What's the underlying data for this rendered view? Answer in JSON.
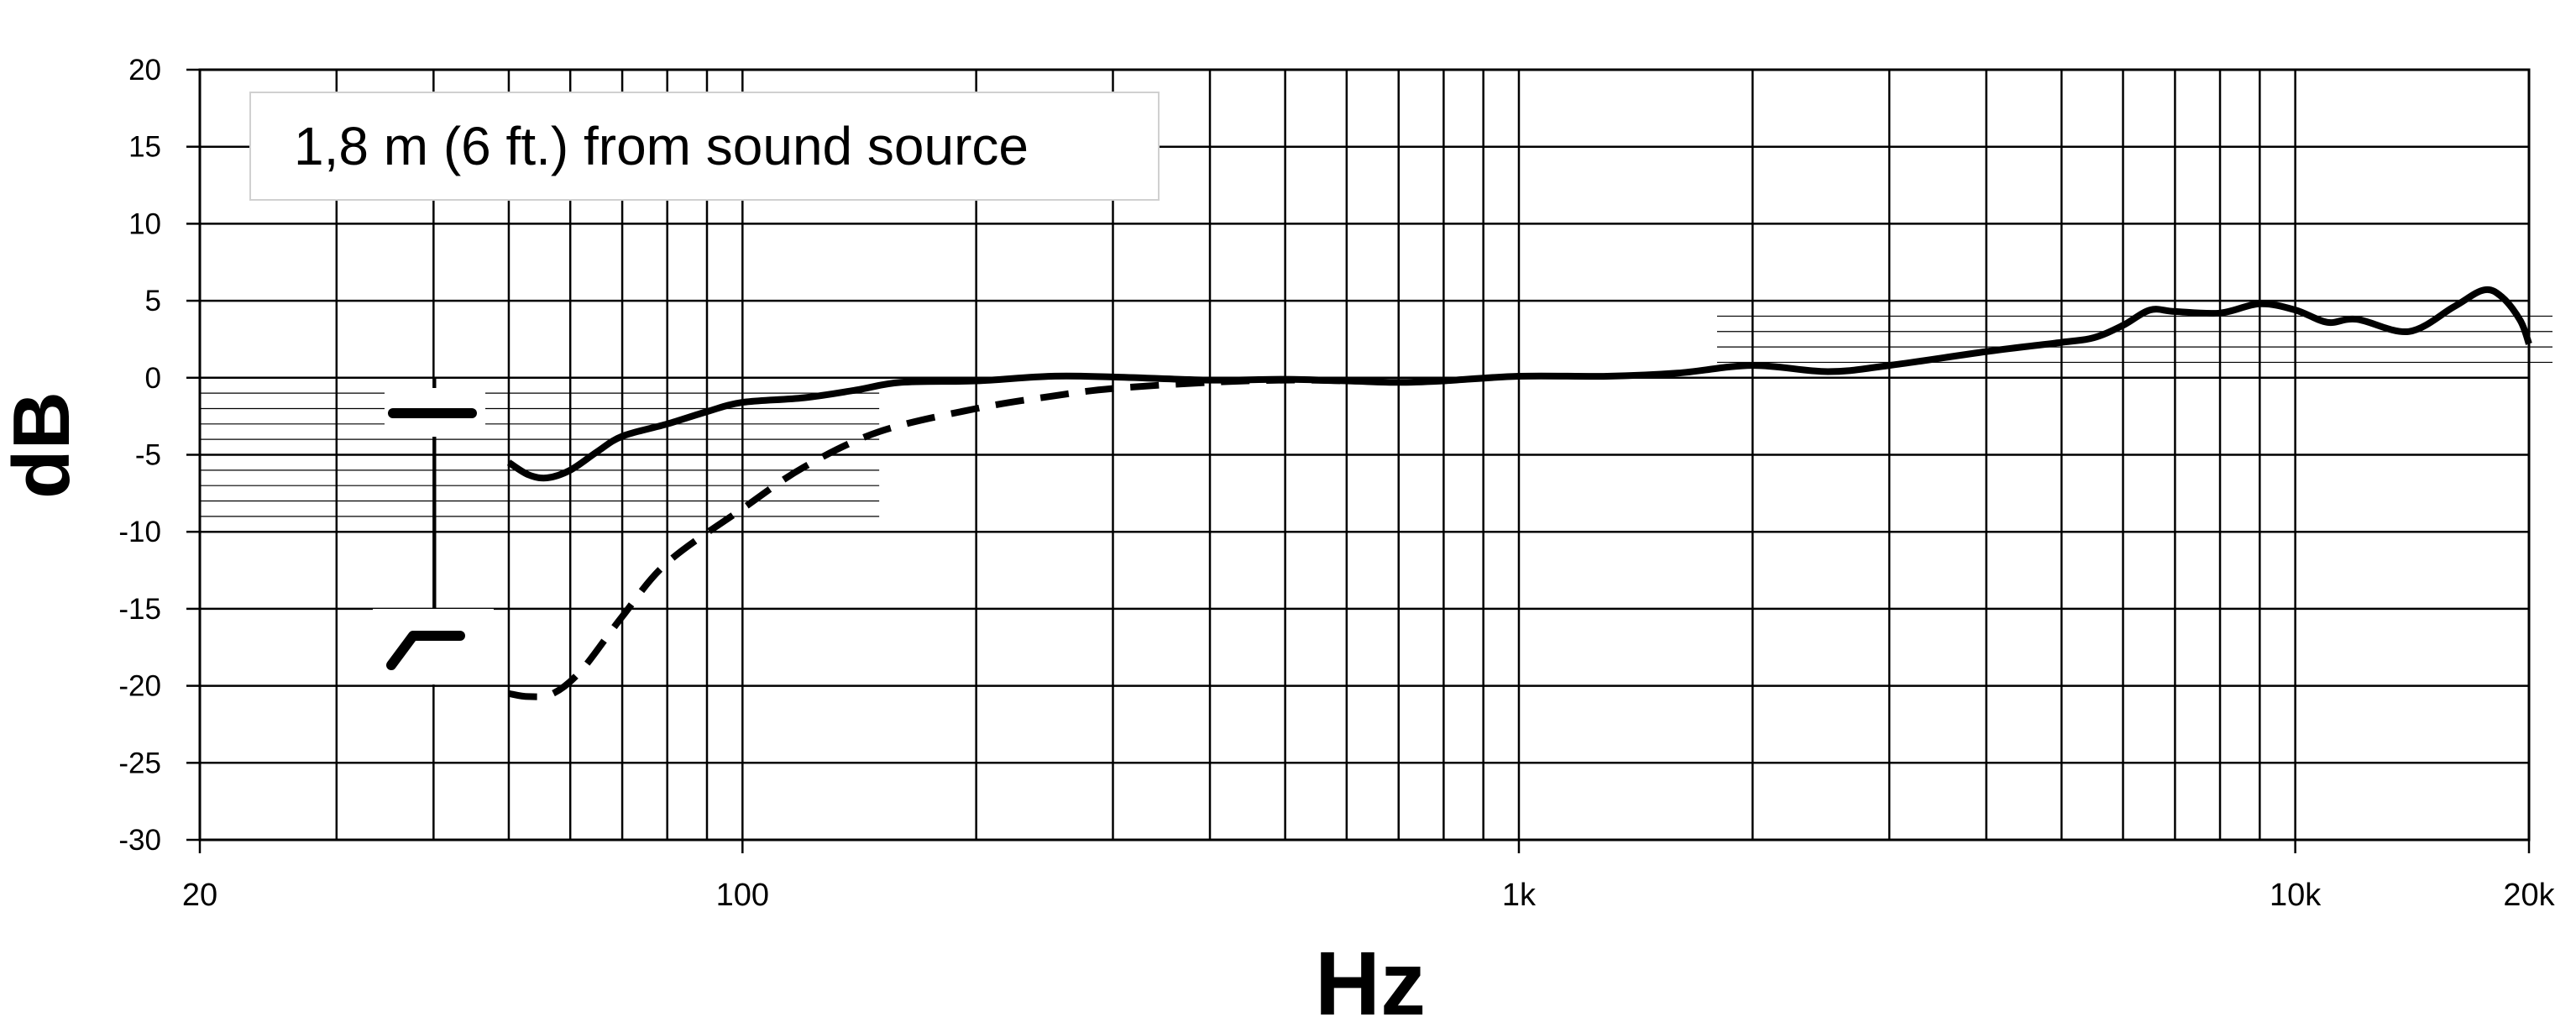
{
  "chart_data": {
    "type": "line",
    "title": "",
    "xlabel": "Hz",
    "ylabel": "dB",
    "x_scale": "log",
    "xlim": [
      20,
      20000
    ],
    "ylim": [
      -30,
      20
    ],
    "grid": true,
    "x_ticks": [
      {
        "value": 20,
        "label": "20"
      },
      {
        "value": 100,
        "label": "100"
      },
      {
        "value": 1000,
        "label": "1k"
      },
      {
        "value": 10000,
        "label": "10k"
      },
      {
        "value": 20000,
        "label": "20k"
      }
    ],
    "y_ticks": [
      {
        "value": 20,
        "label": "20"
      },
      {
        "value": 15,
        "label": "15"
      },
      {
        "value": 10,
        "label": "10"
      },
      {
        "value": 5,
        "label": "5"
      },
      {
        "value": 0,
        "label": "0"
      },
      {
        "value": -5,
        "label": "-5"
      },
      {
        "value": -10,
        "label": "-10"
      },
      {
        "value": -15,
        "label": "-15"
      },
      {
        "value": -20,
        "label": "-20"
      },
      {
        "value": -25,
        "label": "-25"
      },
      {
        "value": -30,
        "label": "-30"
      }
    ],
    "annotation": "1,8 m (6 ft.) from sound source",
    "legend": [
      {
        "series": "flat",
        "symbol": "flat-response-icon",
        "style": "solid"
      },
      {
        "series": "lowcut",
        "symbol": "low-cut-response-icon",
        "style": "dashed"
      }
    ],
    "series": [
      {
        "id": "flat",
        "style": "solid",
        "points": [
          [
            50,
            -5.5
          ],
          [
            53,
            -6.3
          ],
          [
            56,
            -6.5
          ],
          [
            60,
            -6.0
          ],
          [
            65,
            -4.8
          ],
          [
            70,
            -3.8
          ],
          [
            80,
            -3.0
          ],
          [
            90,
            -2.2
          ],
          [
            100,
            -1.6
          ],
          [
            120,
            -1.3
          ],
          [
            140,
            -0.8
          ],
          [
            160,
            -0.3
          ],
          [
            200,
            -0.2
          ],
          [
            250,
            0.1
          ],
          [
            300,
            0.05
          ],
          [
            400,
            -0.15
          ],
          [
            500,
            -0.1
          ],
          [
            600,
            -0.2
          ],
          [
            700,
            -0.3
          ],
          [
            800,
            -0.2
          ],
          [
            1000,
            0.1
          ],
          [
            1300,
            0.1
          ],
          [
            1600,
            0.3
          ],
          [
            2000,
            0.8
          ],
          [
            2500,
            0.4
          ],
          [
            3000,
            0.8
          ],
          [
            4000,
            1.7
          ],
          [
            5000,
            2.3
          ],
          [
            5500,
            2.6
          ],
          [
            6000,
            3.4
          ],
          [
            6500,
            4.4
          ],
          [
            7000,
            4.3
          ],
          [
            8000,
            4.2
          ],
          [
            9000,
            4.8
          ],
          [
            10000,
            4.4
          ],
          [
            11000,
            3.6
          ],
          [
            12000,
            3.8
          ],
          [
            14000,
            3.0
          ],
          [
            16000,
            4.6
          ],
          [
            17500,
            5.7
          ],
          [
            18500,
            5.2
          ],
          [
            19500,
            3.7
          ],
          [
            20000,
            2.2
          ]
        ]
      },
      {
        "id": "lowcut",
        "style": "dashed",
        "points": [
          [
            50,
            -20.5
          ],
          [
            53,
            -20.7
          ],
          [
            57,
            -20.5
          ],
          [
            62,
            -19.0
          ],
          [
            70,
            -15.5
          ],
          [
            80,
            -12.0
          ],
          [
            100,
            -8.5
          ],
          [
            120,
            -5.8
          ],
          [
            150,
            -3.5
          ],
          [
            200,
            -2.0
          ],
          [
            250,
            -1.2
          ],
          [
            300,
            -0.7
          ],
          [
            400,
            -0.3
          ],
          [
            500,
            -0.15
          ],
          [
            600,
            -0.2
          ]
        ]
      }
    ]
  }
}
